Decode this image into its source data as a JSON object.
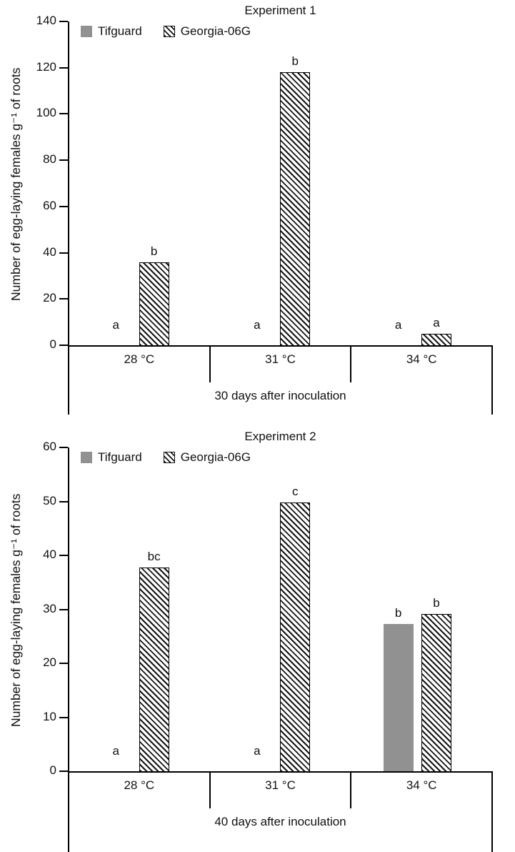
{
  "colors": {
    "tifguard_fill": "#919191",
    "hatch_line": "#151515",
    "axis": "#000000",
    "background": "#ffffff"
  },
  "chart_data": [
    {
      "type": "bar",
      "title": "Experiment 1",
      "ylabel": "Number of egg-laying females g⁻¹ of roots",
      "xlabel": "30 days after inoculation",
      "ylim": [
        0,
        140
      ],
      "ytick_step": 20,
      "grid": false,
      "legend_position": "top-left",
      "categories": [
        "28 °C",
        "31 °C",
        "34 °C"
      ],
      "series": [
        {
          "name": "Tifguard",
          "style": "solid-gray",
          "values": [
            0,
            0,
            0
          ],
          "sig_labels": [
            "a",
            "a",
            ""
          ]
        },
        {
          "name": "Georgia-06G",
          "style": "hatched",
          "values": [
            36,
            118,
            5
          ],
          "sig_labels": [
            "b",
            "b",
            "a"
          ]
        }
      ],
      "extra_labels": [
        {
          "text": "a",
          "group": 2,
          "series": 0
        }
      ]
    },
    {
      "type": "bar",
      "title": "Experiment 2",
      "ylabel": "Number of egg-laying females g⁻¹ of roots",
      "xlabel": "40 days after inoculation",
      "ylim": [
        0,
        60
      ],
      "ytick_step": 10,
      "grid": false,
      "legend_position": "top-left",
      "categories": [
        "28 °C",
        "31 °C",
        "34 °C"
      ],
      "series": [
        {
          "name": "Tifguard",
          "style": "solid-gray",
          "values": [
            0,
            0,
            27.3
          ],
          "sig_labels": [
            "a",
            "a",
            "b"
          ]
        },
        {
          "name": "Georgia-06G",
          "style": "hatched",
          "values": [
            37.8,
            49.8,
            29.2
          ],
          "sig_labels": [
            "bc",
            "c",
            "b"
          ]
        }
      ],
      "extra_labels": []
    }
  ]
}
